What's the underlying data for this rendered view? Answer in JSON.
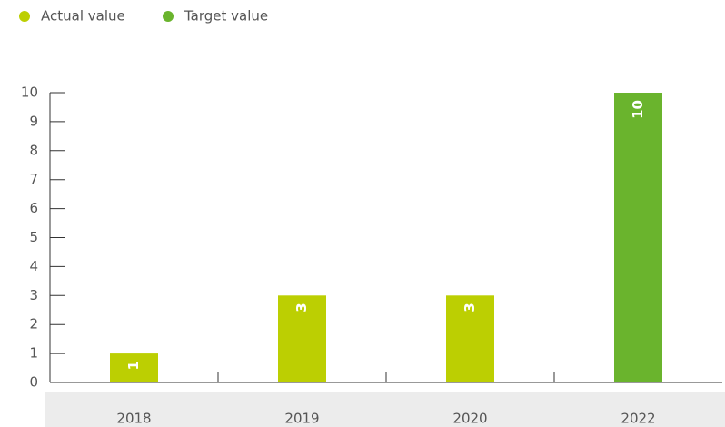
{
  "chart_data": {
    "type": "bar",
    "categories": [
      "2018",
      "2019",
      "2020",
      "2022"
    ],
    "series": [
      {
        "name": "Actual value",
        "color": "#bccf02",
        "values": [
          1,
          3,
          3,
          null
        ]
      },
      {
        "name": "Target value",
        "color": "#6ab42d",
        "values": [
          null,
          null,
          null,
          10
        ]
      }
    ],
    "ylim": [
      0,
      10
    ],
    "yticks": [
      0,
      1,
      2,
      3,
      4,
      5,
      6,
      7,
      8,
      9,
      10
    ],
    "legend": "top-left"
  }
}
